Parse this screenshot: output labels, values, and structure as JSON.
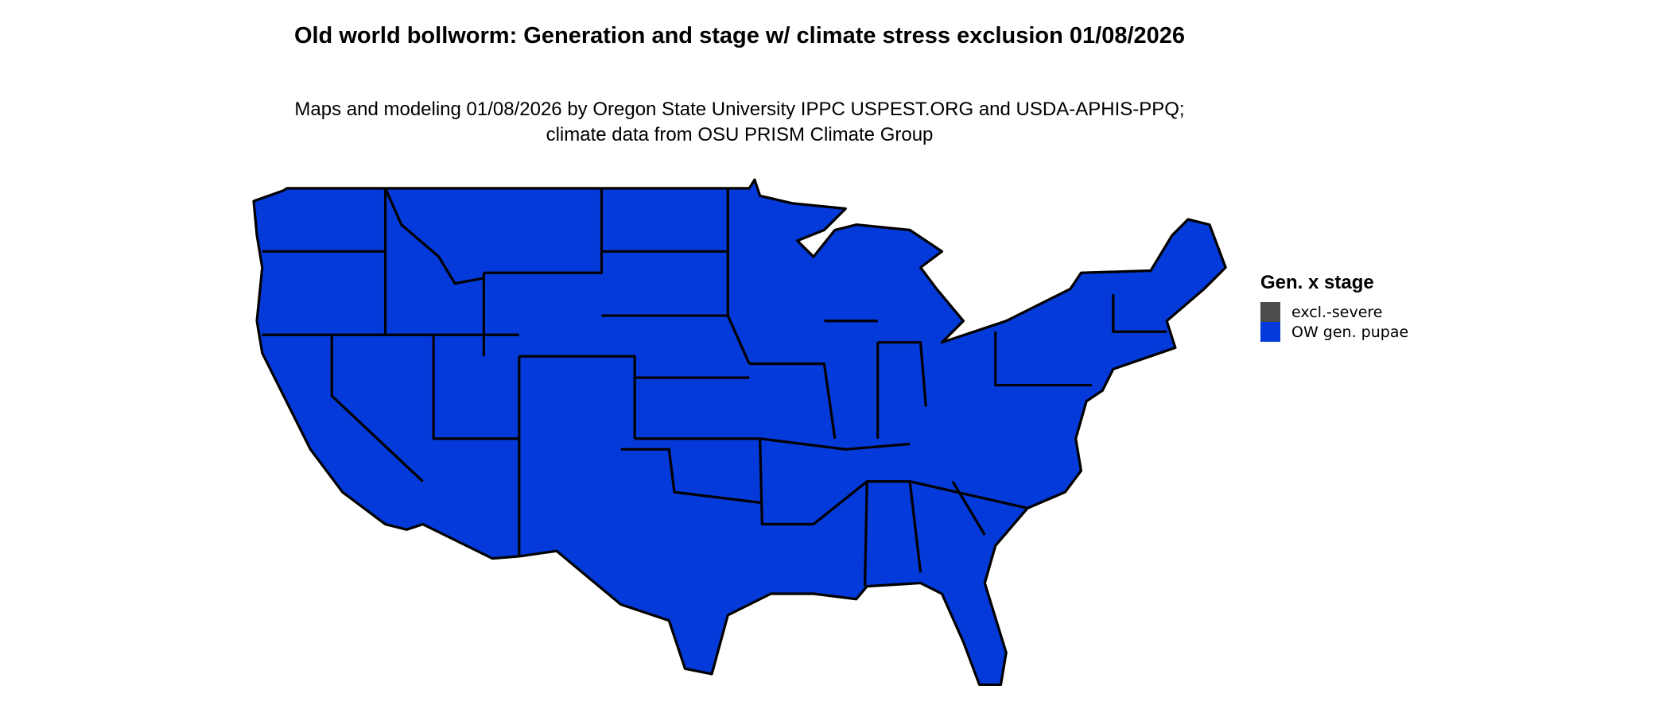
{
  "title": "Old world bollworm: Generation and stage w/ climate stress exclusion 01/08/2026",
  "subtitle": "Maps and modeling 01/08/2026 by Oregon State University IPPC USPEST.ORG and USDA-APHIS-PPQ; climate data from OSU PRISM Climate Group",
  "map": {
    "region": "Contiguous United States",
    "fill_color": "#033ad9",
    "border_color": "#000000"
  },
  "legend": {
    "title": "Gen. x stage",
    "items": [
      {
        "label": "excl.-severe",
        "color": "#4d4d4d"
      },
      {
        "label": "OW gen. pupae",
        "color": "#033ad9"
      }
    ]
  }
}
